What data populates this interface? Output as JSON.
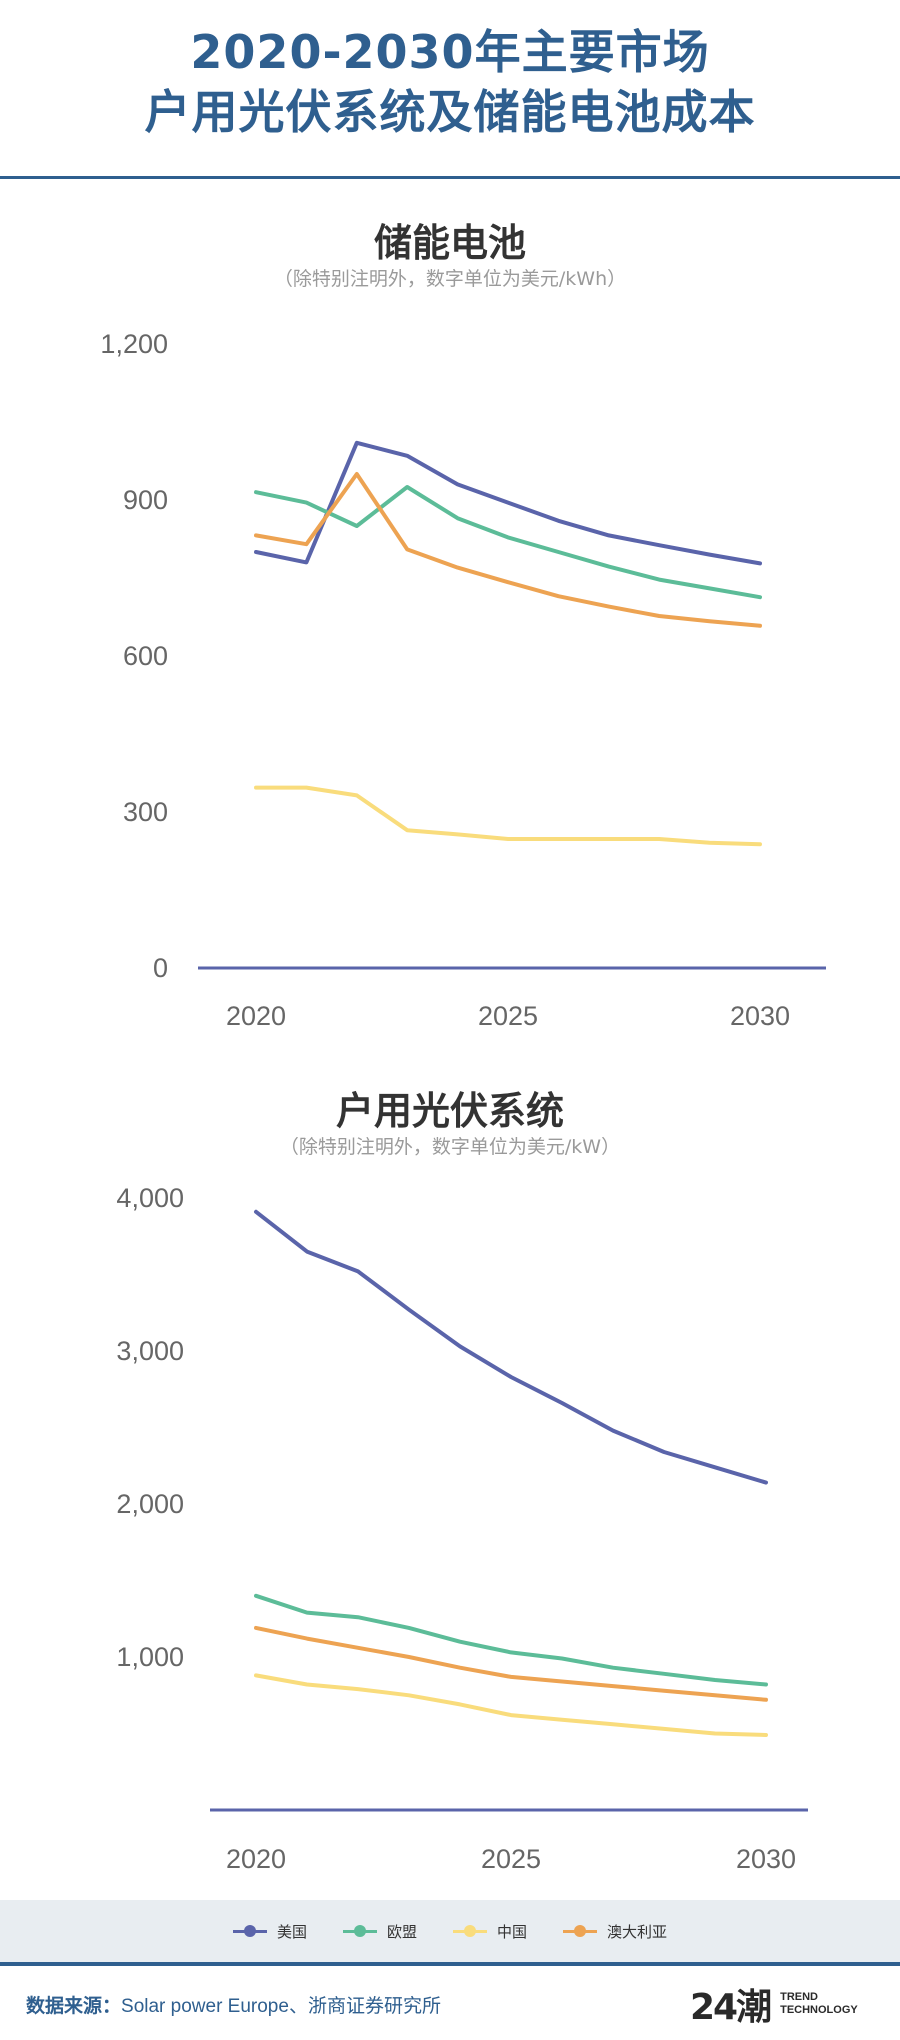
{
  "header": {
    "title_line1": "2020-2030年主要市场",
    "title_line2": "户用光伏系统及储能电池成本"
  },
  "colors": {
    "accent": "#2f5f8f",
    "us": "#5a64aa",
    "eu": "#5cbc98",
    "cn": "#f9dc7c",
    "au": "#eda352"
  },
  "chart_data": [
    {
      "type": "line",
      "title": "储能电池",
      "subtitle": "（除特别注明外，数字单位为美元/kWh）",
      "x": [
        2020,
        2021,
        2022,
        2023,
        2024,
        2025,
        2026,
        2027,
        2028,
        2029,
        2030
      ],
      "xticks": [
        "2020",
        "2025",
        "2030"
      ],
      "yticks": [
        "0",
        "300",
        "600",
        "900",
        "1,200"
      ],
      "ylim": [
        0,
        1200
      ],
      "series": [
        {
          "name": "美国",
          "color": "#5a64aa",
          "values": [
            800,
            780,
            1010,
            985,
            930,
            895,
            860,
            832,
            813,
            795,
            778
          ]
        },
        {
          "name": "欧盟",
          "color": "#5cbc98",
          "values": [
            915,
            895,
            850,
            925,
            865,
            828,
            800,
            772,
            747,
            730,
            713
          ]
        },
        {
          "name": "中国",
          "color": "#f9dc7c",
          "values": [
            347,
            347,
            332,
            265,
            257,
            248,
            248,
            248,
            248,
            241,
            238
          ]
        },
        {
          "name": "澳大利亚",
          "color": "#eda352",
          "values": [
            832,
            815,
            950,
            805,
            770,
            742,
            715,
            695,
            677,
            667,
            658
          ]
        }
      ]
    },
    {
      "type": "line",
      "title": "户用光伏系统",
      "subtitle": "（除特别注明外，数字单位为美元/kW）",
      "x": [
        2020,
        2021,
        2022,
        2023,
        2024,
        2025,
        2026,
        2027,
        2028,
        2029,
        2030
      ],
      "xticks": [
        "2020",
        "2025",
        "2030"
      ],
      "yticks": [
        "1,000",
        "2,000",
        "3,000",
        "4,000"
      ],
      "ylim": [
        0,
        4000
      ],
      "series": [
        {
          "name": "美国",
          "color": "#5a64aa",
          "values": [
            3910,
            3650,
            3520,
            3270,
            3030,
            2830,
            2660,
            2480,
            2340,
            2240,
            2140
          ]
        },
        {
          "name": "欧盟",
          "color": "#5cbc98",
          "values": [
            1400,
            1290,
            1260,
            1190,
            1100,
            1030,
            990,
            930,
            890,
            850,
            820
          ]
        },
        {
          "name": "中国",
          "color": "#f9dc7c",
          "values": [
            880,
            820,
            790,
            750,
            690,
            620,
            590,
            560,
            530,
            500,
            490
          ]
        },
        {
          "name": "澳大利亚",
          "color": "#eda352",
          "values": [
            1190,
            1120,
            1060,
            1000,
            930,
            870,
            840,
            810,
            780,
            750,
            720
          ]
        }
      ]
    }
  ],
  "legend": [
    {
      "name": "美国",
      "color": "#5a64aa"
    },
    {
      "name": "欧盟",
      "color": "#5cbc98"
    },
    {
      "name": "中国",
      "color": "#f9dc7c"
    },
    {
      "name": "澳大利亚",
      "color": "#eda352"
    }
  ],
  "footer": {
    "source_label": "数据来源：",
    "source_text": "Solar power Europe、浙商证券研究所",
    "logo_mark": "24潮",
    "logo_line1": "TREND",
    "logo_line2": "TECHNOLOGY"
  }
}
